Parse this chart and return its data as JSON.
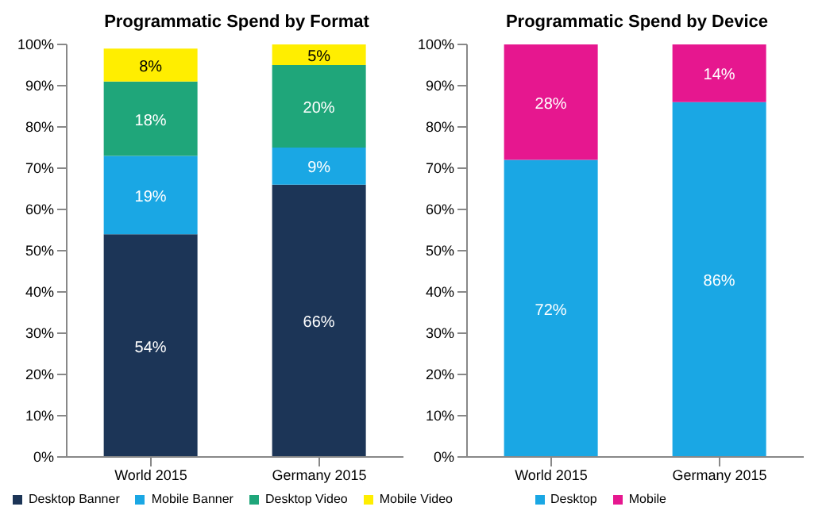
{
  "chart_data": [
    {
      "type": "bar",
      "title": "Programmatic Spend by Format",
      "categories": [
        "World 2015",
        "Germany 2015"
      ],
      "stacked": true,
      "legend": "bottom",
      "grid": false,
      "ylim": [
        0,
        100
      ],
      "yticks": [
        {
          "value": 0,
          "label": "0%"
        },
        {
          "value": 10,
          "label": "10%"
        },
        {
          "value": 20,
          "label": "20%"
        },
        {
          "value": 30,
          "label": "30%"
        },
        {
          "value": 40,
          "label": "40%"
        },
        {
          "value": 50,
          "label": "50%"
        },
        {
          "value": 60,
          "label": "60%"
        },
        {
          "value": 70,
          "label": "70%"
        },
        {
          "value": 80,
          "label": "80%"
        },
        {
          "value": 90,
          "label": "90%"
        },
        {
          "value": 100,
          "label": "100%"
        }
      ],
      "series": [
        {
          "name": "Desktop Banner",
          "color": "#1c3557",
          "values": [
            54,
            66
          ],
          "value_labels": [
            "54%",
            "66%"
          ]
        },
        {
          "name": "Mobile Banner",
          "color": "#1aa7e4",
          "values": [
            19,
            9
          ],
          "value_labels": [
            "19%",
            "9%"
          ]
        },
        {
          "name": "Desktop Video",
          "color": "#1fa67a",
          "values": [
            18,
            20
          ],
          "value_labels": [
            "18%",
            "20%"
          ]
        },
        {
          "name": "Mobile Video",
          "color": "#ffee00",
          "values": [
            8,
            5
          ],
          "value_labels": [
            "8%",
            "5%"
          ]
        }
      ]
    },
    {
      "type": "bar",
      "title": "Programmatic Spend by Device",
      "categories": [
        "World 2015",
        "Germany 2015"
      ],
      "stacked": true,
      "legend": "bottom",
      "grid": false,
      "ylim": [
        0,
        100
      ],
      "yticks": [
        {
          "value": 0,
          "label": "0%"
        },
        {
          "value": 10,
          "label": "10%"
        },
        {
          "value": 20,
          "label": "20%"
        },
        {
          "value": 30,
          "label": "30%"
        },
        {
          "value": 40,
          "label": "40%"
        },
        {
          "value": 50,
          "label": "50%"
        },
        {
          "value": 60,
          "label": "60%"
        },
        {
          "value": 70,
          "label": "70%"
        },
        {
          "value": 80,
          "label": "80%"
        },
        {
          "value": 90,
          "label": "90%"
        },
        {
          "value": 100,
          "label": "100%"
        }
      ],
      "series": [
        {
          "name": "Desktop",
          "color": "#1aa7e4",
          "values": [
            72,
            86
          ],
          "value_labels": [
            "72%",
            "86%"
          ]
        },
        {
          "name": "Mobile",
          "color": "#e6178f",
          "values": [
            28,
            14
          ],
          "value_labels": [
            "28%",
            "14%"
          ]
        }
      ]
    }
  ]
}
